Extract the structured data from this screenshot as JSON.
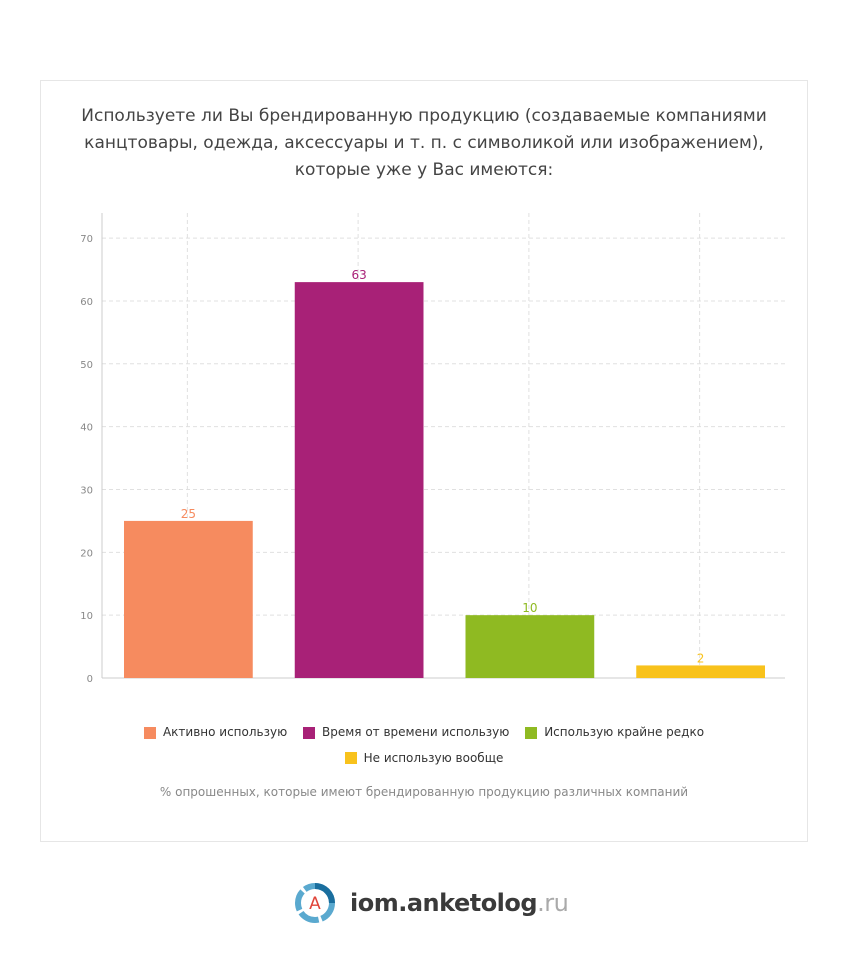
{
  "chart_data": {
    "type": "bar",
    "title": "Используете ли Вы брендированную продукцию (создаваемые компаниями канцтовары, одежда, аксессуары и т. п. с символикой или изображением), которые уже у Вас имеются:",
    "categories": [
      "Активно использую",
      "Время от времени использую",
      "Использую крайне редко",
      "Не использую вообще"
    ],
    "values": [
      25,
      63,
      10,
      2
    ],
    "colors": [
      "#f68b5f",
      "#a82177",
      "#8fba22",
      "#f8c21c"
    ],
    "ylim": [
      0,
      74
    ],
    "yticks": [
      0,
      10,
      20,
      30,
      40,
      50,
      60,
      70
    ],
    "grid": true,
    "legend_position": "bottom",
    "caption": "% опрошенных, которые имеют брендированную продукцию различных компаний"
  },
  "logo": {
    "name": "iom.anketolog",
    "tld": ".ru",
    "letter": "A"
  }
}
